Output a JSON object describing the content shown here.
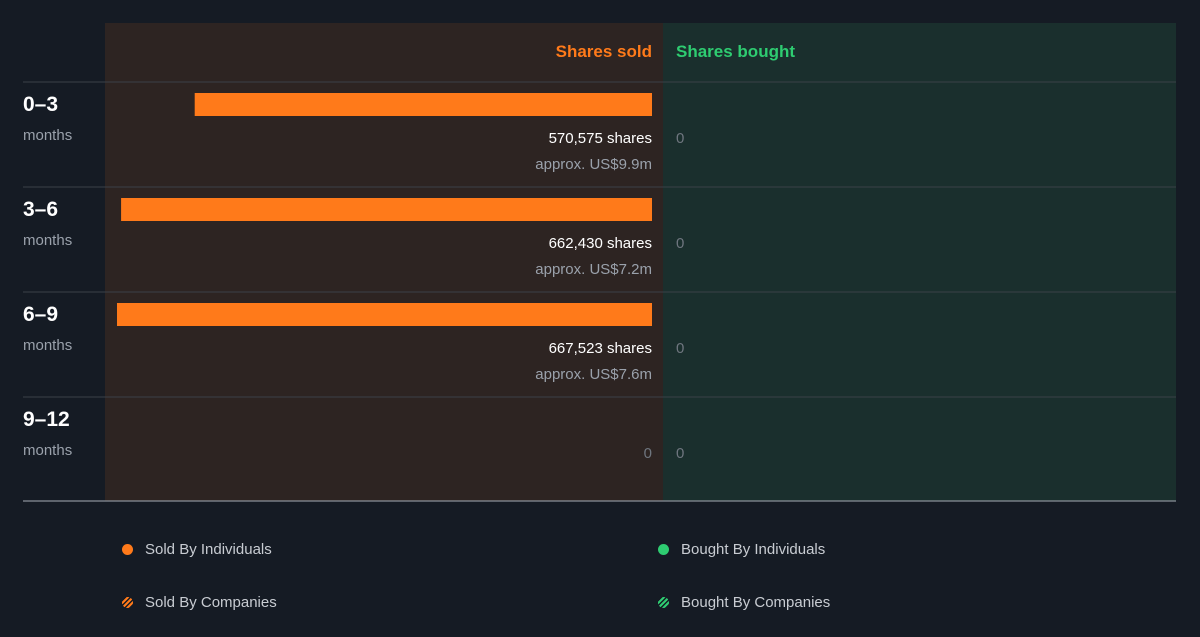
{
  "chart_data": {
    "type": "bar",
    "orientation": "horizontal",
    "title": "",
    "column_headers": {
      "sold": "Shares sold",
      "bought": "Shares bought"
    },
    "categories": [
      {
        "period": "0–3",
        "unit": "months"
      },
      {
        "period": "3–6",
        "unit": "months"
      },
      {
        "period": "6–9",
        "unit": "months"
      },
      {
        "period": "9–12",
        "unit": "months"
      }
    ],
    "series": [
      {
        "name": "Shares sold",
        "values": [
          570575,
          662430,
          667523,
          0
        ],
        "labels": [
          "570,575 shares",
          "662,430 shares",
          "667,523 shares",
          "0"
        ],
        "value_labels": [
          "approx. US$9.9m",
          "approx. US$7.2m",
          "approx. US$7.6m",
          ""
        ]
      },
      {
        "name": "Shares bought",
        "values": [
          0,
          0,
          0,
          0
        ],
        "labels": [
          "0",
          "0",
          "0",
          "0"
        ]
      }
    ],
    "xlim": [
      0,
      680000
    ],
    "legend": [
      {
        "label": "Sold By Individuals",
        "style": "dot",
        "color": "#ff7a1a"
      },
      {
        "label": "Bought By Individuals",
        "style": "dot",
        "color": "#2ecc71"
      },
      {
        "label": "Sold By Companies",
        "style": "hatch",
        "color": "#ff7a1a"
      },
      {
        "label": "Bought By Companies",
        "style": "hatch",
        "color": "#2ecc71"
      }
    ],
    "colors": {
      "sold": "#ff7a1a",
      "bought": "#2ecc71",
      "sold_panel": "#2d2422",
      "bought_panel": "#1a2f2d"
    }
  }
}
